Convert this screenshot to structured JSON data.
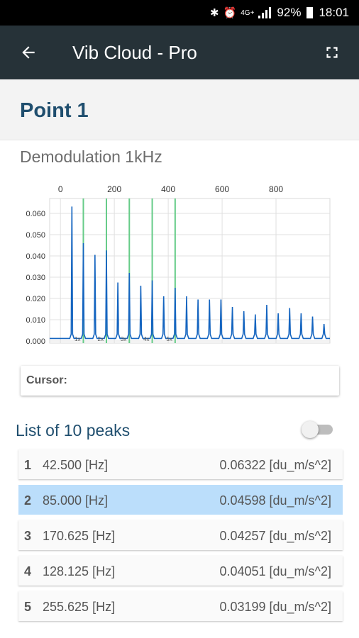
{
  "status_bar": {
    "battery": "92%",
    "time": "18:01",
    "network": "4G+"
  },
  "app_bar": {
    "title": "Vib Cloud - Pro",
    "back_icon": "arrow-back-icon",
    "action_icon": "fullscreen-icon"
  },
  "point": {
    "title": "Point 1"
  },
  "chart_data": {
    "type": "line",
    "title": "Demodulation 1kHz",
    "xlabel": "",
    "ylabel": "",
    "xlim": [
      -40,
      1000
    ],
    "ylim": [
      -0.001,
      0.067
    ],
    "x_ticks": [
      0,
      200,
      400,
      600,
      800
    ],
    "y_ticks": [
      0.0,
      0.01,
      0.02,
      0.03,
      0.04,
      0.05,
      0.06
    ],
    "y_tick_labels": [
      "0.000",
      "0.010",
      "0.020",
      "0.030",
      "0.040",
      "0.050",
      "0.060"
    ],
    "grid": true,
    "series": [
      {
        "color": "#1565c0",
        "peaks": [
          [
            42.5,
            0.0632
          ],
          [
            85.0,
            0.046
          ],
          [
            128.1,
            0.0405
          ],
          [
            170.6,
            0.0426
          ],
          [
            213.1,
            0.0275
          ],
          [
            255.6,
            0.032
          ],
          [
            298.1,
            0.026
          ],
          [
            340.6,
            0.0285
          ],
          [
            383.1,
            0.021
          ],
          [
            425.6,
            0.025
          ],
          [
            468.1,
            0.021
          ],
          [
            510.6,
            0.0195
          ],
          [
            553.1,
            0.0195
          ],
          [
            595.6,
            0.0195
          ],
          [
            638.1,
            0.016
          ],
          [
            680.6,
            0.014
          ],
          [
            723.1,
            0.0125
          ],
          [
            765.6,
            0.017
          ],
          [
            808.1,
            0.013
          ],
          [
            850.6,
            0.0155
          ],
          [
            893.1,
            0.013
          ],
          [
            935.6,
            0.0115
          ],
          [
            978.1,
            0.008
          ]
        ],
        "baseline": 0.0012
      }
    ],
    "harmonic_markers": {
      "color": "#66cc88",
      "x": [
        85.0,
        170.6,
        255.6,
        340.6,
        425.6
      ],
      "labels": [
        "1x",
        "2x",
        "3x",
        "4x",
        "5x"
      ]
    }
  },
  "cursor": {
    "label": "Cursor:"
  },
  "peaks": {
    "title": "List of 10 peaks",
    "toggle_on": false,
    "items": [
      {
        "index": "1",
        "freq": "42.500 [Hz]",
        "amp": "0.06322 [du_m/s^2]",
        "selected": false
      },
      {
        "index": "2",
        "freq": "85.000 [Hz]",
        "amp": "0.04598 [du_m/s^2]",
        "selected": true
      },
      {
        "index": "3",
        "freq": "170.625 [Hz]",
        "amp": "0.04257 [du_m/s^2]",
        "selected": false
      },
      {
        "index": "4",
        "freq": "128.125 [Hz]",
        "amp": "0.04051 [du_m/s^2]",
        "selected": false
      },
      {
        "index": "5",
        "freq": "255.625 [Hz]",
        "amp": "0.03199 [du_m/s^2]",
        "selected": false
      }
    ]
  }
}
